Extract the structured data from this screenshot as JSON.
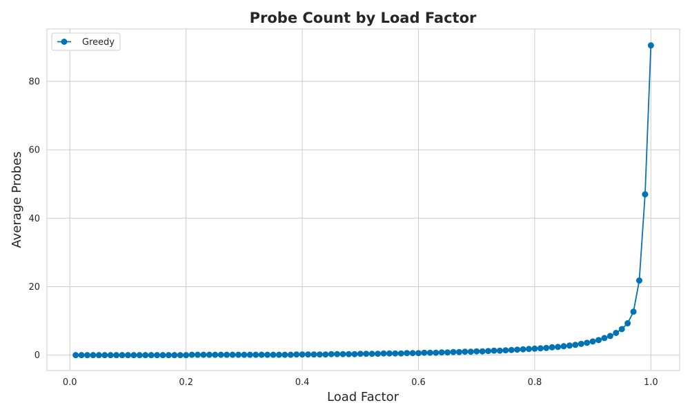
{
  "chart_data": {
    "type": "line",
    "title": "Probe Count by Load Factor",
    "xlabel": "Load Factor",
    "ylabel": "Average Probes",
    "xlim": [
      -0.0395,
      1.0495
    ],
    "ylim": [
      -4.5,
      95.3
    ],
    "xticks": [
      0.0,
      0.2,
      0.4,
      0.6,
      0.8,
      1.0
    ],
    "xtick_labels": [
      "0.0",
      "0.2",
      "0.4",
      "0.6",
      "0.8",
      "1.0"
    ],
    "yticks": [
      0,
      20,
      40,
      60,
      80
    ],
    "ytick_labels": [
      "0",
      "20",
      "40",
      "60",
      "80"
    ],
    "grid": true,
    "legend_position": "top-left",
    "series": [
      {
        "name": "Greedy",
        "color": "#0173b2",
        "marker": "circle",
        "x": [
          0.01,
          0.02,
          0.03,
          0.04,
          0.05,
          0.06,
          0.07,
          0.08,
          0.09,
          0.1,
          0.11,
          0.12,
          0.13,
          0.14,
          0.15,
          0.16,
          0.17,
          0.18,
          0.19,
          0.2,
          0.21,
          0.22,
          0.23,
          0.24,
          0.25,
          0.26,
          0.27,
          0.28,
          0.29,
          0.3,
          0.31,
          0.32,
          0.33,
          0.34,
          0.35,
          0.36,
          0.37,
          0.38,
          0.39,
          0.4,
          0.41,
          0.42,
          0.43,
          0.44,
          0.45,
          0.46,
          0.47,
          0.48,
          0.49,
          0.5,
          0.51,
          0.52,
          0.53,
          0.54,
          0.55,
          0.56,
          0.57,
          0.58,
          0.59,
          0.6,
          0.61,
          0.62,
          0.63,
          0.64,
          0.65,
          0.66,
          0.67,
          0.68,
          0.69,
          0.7,
          0.71,
          0.72,
          0.73,
          0.74,
          0.75,
          0.76,
          0.77,
          0.78,
          0.79,
          0.8,
          0.81,
          0.82,
          0.83,
          0.84,
          0.85,
          0.86,
          0.87,
          0.88,
          0.89,
          0.9,
          0.91,
          0.92,
          0.93,
          0.94,
          0.95,
          0.96,
          0.97,
          0.98,
          0.99,
          1.0
        ],
        "y": [
          0.0,
          0.0,
          0.0,
          0.0,
          0.0,
          0.0,
          0.0,
          0.0,
          0.0,
          0.0,
          0.0,
          0.0,
          0.0,
          0.0,
          0.0,
          0.0,
          0.0,
          0.0,
          0.0,
          0.0,
          0.1,
          0.1,
          0.1,
          0.1,
          0.1,
          0.1,
          0.1,
          0.1,
          0.1,
          0.1,
          0.1,
          0.1,
          0.1,
          0.1,
          0.1,
          0.1,
          0.1,
          0.1,
          0.2,
          0.2,
          0.2,
          0.2,
          0.2,
          0.2,
          0.3,
          0.3,
          0.3,
          0.3,
          0.3,
          0.4,
          0.4,
          0.4,
          0.4,
          0.5,
          0.5,
          0.5,
          0.5,
          0.6,
          0.6,
          0.6,
          0.7,
          0.7,
          0.7,
          0.8,
          0.8,
          0.9,
          0.9,
          1.0,
          1.0,
          1.1,
          1.1,
          1.2,
          1.3,
          1.3,
          1.4,
          1.5,
          1.6,
          1.7,
          1.8,
          1.9,
          2.0,
          2.1,
          2.3,
          2.4,
          2.6,
          2.8,
          3.0,
          3.3,
          3.6,
          4.0,
          4.4,
          5.0,
          5.6,
          6.5,
          7.6,
          9.3,
          12.7,
          21.8,
          47.0,
          90.5
        ]
      }
    ]
  }
}
